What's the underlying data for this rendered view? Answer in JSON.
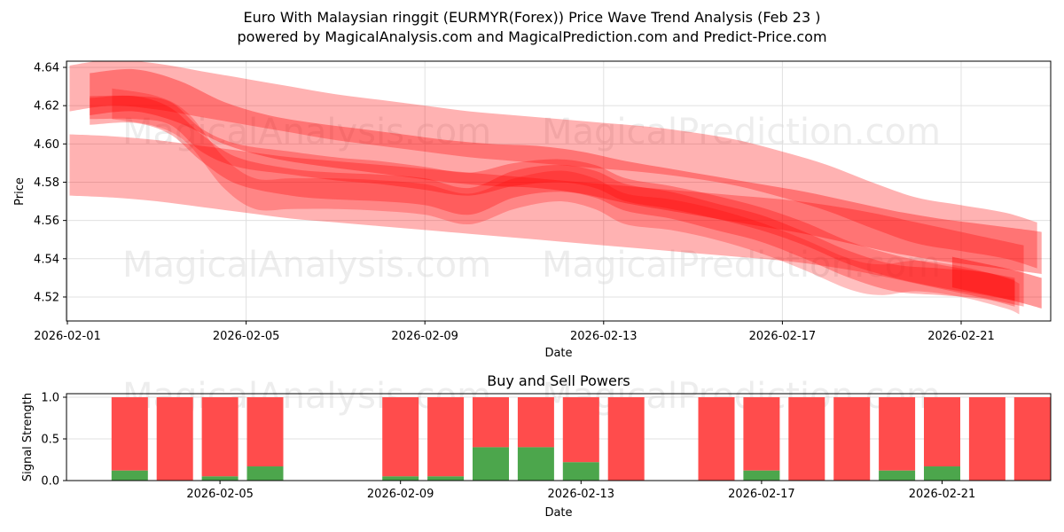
{
  "header": {
    "title_line1": "Euro With Malaysian ringgit (EURMYR(Forex)) Price Wave Trend Analysis (Feb 23 )",
    "title_line2": "powered by MagicalAnalysis.com and MagicalPrediction.com and Predict-Price.com"
  },
  "watermarks": [
    "MagicalAnalysis.com",
    "MagicalPrediction.com"
  ],
  "colors": {
    "wave": "#ff0000",
    "sell": "#ff4c4c",
    "buy": "#4ca64c",
    "grid": "#e0e0e0",
    "watermark": "#d8d8d8"
  },
  "chart_data": [
    {
      "type": "area",
      "title": "",
      "xlabel": "Date",
      "ylabel": "Price",
      "x_ticks": [
        "2026-02-01",
        "2026-02-05",
        "2026-02-09",
        "2026-02-13",
        "2026-02-17",
        "2026-02-21"
      ],
      "y_ticks": [
        "4.52",
        "4.54",
        "4.56",
        "4.58",
        "4.60",
        "4.62",
        "4.64"
      ],
      "xlim": [
        "2026-01-31.8",
        "2026-02-22.9"
      ],
      "ylim": [
        4.507,
        4.643
      ],
      "grid": true,
      "description": "Overlapping translucent red wave bands showing predicted price trend, declining from ~4.62 to ~4.53",
      "bands": [
        {
          "name": "upper-wide",
          "alpha": 0.3,
          "halfwidth": 0.012,
          "points": [
            [
              0.05,
              4.629
            ],
            [
              1,
              4.632
            ],
            [
              2,
              4.63
            ],
            [
              3,
              4.626
            ],
            [
              4,
              4.622
            ],
            [
              5,
              4.618
            ],
            [
              6,
              4.614
            ],
            [
              7,
              4.611
            ],
            [
              8,
              4.608
            ],
            [
              9,
              4.605
            ],
            [
              10,
              4.603
            ],
            [
              11,
              4.601
            ],
            [
              12,
              4.599
            ],
            [
              13,
              4.597
            ],
            [
              14,
              4.594
            ],
            [
              15,
              4.59
            ],
            [
              16,
              4.584
            ],
            [
              17,
              4.577
            ],
            [
              18,
              4.568
            ],
            [
              19,
              4.56
            ],
            [
              20,
              4.556
            ],
            [
              21,
              4.552
            ],
            [
              21.7,
              4.547
            ]
          ]
        },
        {
          "name": "lower-wide",
          "alpha": 0.3,
          "halfwidth": 0.016,
          "points": [
            [
              0.05,
              4.589
            ],
            [
              1,
              4.588
            ],
            [
              2,
              4.586
            ],
            [
              3,
              4.583
            ],
            [
              4,
              4.58
            ],
            [
              5,
              4.577
            ],
            [
              6,
              4.575
            ],
            [
              7,
              4.573
            ],
            [
              8,
              4.571
            ],
            [
              9,
              4.569
            ],
            [
              10,
              4.567
            ],
            [
              11,
              4.565
            ],
            [
              12,
              4.563
            ],
            [
              13,
              4.561
            ],
            [
              14,
              4.559
            ],
            [
              15,
              4.557
            ],
            [
              16,
              4.555
            ],
            [
              17,
              4.552
            ],
            [
              18,
              4.548
            ],
            [
              19,
              4.543
            ],
            [
              20,
              4.538
            ],
            [
              21,
              4.533
            ],
            [
              21.4,
              4.531
            ]
          ]
        },
        {
          "name": "main-upper",
          "alpha": 0.35,
          "halfwidth": 0.011,
          "points": [
            [
              0.5,
              4.626
            ],
            [
              1.5,
              4.628
            ],
            [
              2.5,
              4.622
            ],
            [
              3.5,
              4.611
            ],
            [
              4.5,
              4.604
            ],
            [
              5.5,
              4.6
            ],
            [
              6.5,
              4.597
            ],
            [
              7.5,
              4.594
            ],
            [
              8.5,
              4.591
            ],
            [
              9.5,
              4.589
            ],
            [
              10.5,
              4.588
            ],
            [
              11.5,
              4.585
            ],
            [
              12.5,
              4.58
            ],
            [
              13.5,
              4.576
            ],
            [
              14.5,
              4.572
            ],
            [
              15.5,
              4.568
            ],
            [
              16.5,
              4.564
            ],
            [
              17.5,
              4.559
            ],
            [
              18.5,
              4.554
            ],
            [
              19.5,
              4.55
            ],
            [
              20.5,
              4.547
            ],
            [
              21.5,
              4.544
            ],
            [
              21.8,
              4.543
            ]
          ]
        },
        {
          "name": "core-1",
          "alpha": 0.3,
          "halfwidth": 0.006,
          "points": [
            [
              0.5,
              4.619
            ],
            [
              1.5,
              4.619
            ],
            [
              2.3,
              4.616
            ],
            [
              3,
              4.602
            ],
            [
              3.8,
              4.594
            ],
            [
              5,
              4.59
            ],
            [
              6,
              4.587
            ],
            [
              7,
              4.585
            ],
            [
              8,
              4.582
            ],
            [
              9,
              4.579
            ],
            [
              10,
              4.584
            ],
            [
              11,
              4.586
            ],
            [
              11.8,
              4.583
            ],
            [
              12.5,
              4.576
            ],
            [
              13.5,
              4.572
            ],
            [
              14.5,
              4.567
            ],
            [
              15.5,
              4.561
            ],
            [
              16.5,
              4.553
            ],
            [
              17.5,
              4.543
            ],
            [
              18.5,
              4.536
            ],
            [
              19.5,
              4.531
            ],
            [
              20.5,
              4.527
            ],
            [
              21.2,
              4.524
            ]
          ]
        },
        {
          "name": "core-2",
          "alpha": 0.3,
          "halfwidth": 0.007,
          "points": [
            [
              0.5,
              4.617
            ],
            [
              1.5,
              4.618
            ],
            [
              2.3,
              4.612
            ],
            [
              3,
              4.598
            ],
            [
              3.8,
              4.586
            ],
            [
              5,
              4.58
            ],
            [
              6,
              4.578
            ],
            [
              7,
              4.577
            ],
            [
              8,
              4.575
            ],
            [
              9,
              4.57
            ],
            [
              10,
              4.579
            ],
            [
              11,
              4.582
            ],
            [
              11.8,
              4.579
            ],
            [
              12.5,
              4.572
            ],
            [
              13.5,
              4.568
            ],
            [
              14.5,
              4.562
            ],
            [
              15.5,
              4.556
            ],
            [
              16.5,
              4.547
            ],
            [
              17.5,
              4.537
            ],
            [
              18.5,
              4.53
            ],
            [
              19.5,
              4.528
            ],
            [
              20.5,
              4.526
            ],
            [
              21.2,
              4.522
            ]
          ]
        },
        {
          "name": "core-3",
          "alpha": 0.25,
          "halfwidth": 0.008,
          "points": [
            [
              1,
              4.621
            ],
            [
              2,
              4.617
            ],
            [
              2.7,
              4.608
            ],
            [
              3.5,
              4.585
            ],
            [
              4.2,
              4.574
            ],
            [
              5,
              4.574
            ],
            [
              6,
              4.574
            ],
            [
              7,
              4.573
            ],
            [
              8,
              4.571
            ],
            [
              9,
              4.566
            ],
            [
              10,
              4.574
            ],
            [
              11,
              4.578
            ],
            [
              11.8,
              4.574
            ],
            [
              12.5,
              4.566
            ],
            [
              13.5,
              4.563
            ],
            [
              14.5,
              4.558
            ],
            [
              15.5,
              4.551
            ],
            [
              16.5,
              4.542
            ],
            [
              17.5,
              4.532
            ],
            [
              18.2,
              4.529
            ],
            [
              19,
              4.531
            ],
            [
              20,
              4.528
            ],
            [
              21,
              4.522
            ],
            [
              21.3,
              4.519
            ]
          ]
        },
        {
          "name": "end-block",
          "alpha": 0.4,
          "halfwidth": 0.008,
          "points": [
            [
              19.8,
              4.533
            ],
            [
              20.4,
              4.53
            ],
            [
              21,
              4.527
            ],
            [
              21.5,
              4.524
            ],
            [
              21.8,
              4.522
            ]
          ]
        }
      ]
    },
    {
      "type": "bar",
      "title": "Buy and Sell Powers",
      "xlabel": "Date",
      "ylabel": "Signal Strength",
      "x_ticks": [
        "2026-02-05",
        "2026-02-09",
        "2026-02-13",
        "2026-02-17",
        "2026-02-21"
      ],
      "y_ticks": [
        "0.0",
        "0.5",
        "1.0"
      ],
      "ylim": [
        0,
        1.05
      ],
      "grid": true,
      "stacked": true,
      "categories": [
        "2026-02-03",
        "2026-02-04",
        "2026-02-05",
        "2026-02-06",
        "2026-02-09",
        "2026-02-10",
        "2026-02-11",
        "2026-02-12",
        "2026-02-13",
        "2026-02-14",
        "2026-02-16",
        "2026-02-17",
        "2026-02-18",
        "2026-02-19",
        "2026-02-20",
        "2026-02-21",
        "2026-02-22",
        "2026-02-23"
      ],
      "day_index": [
        2,
        3,
        4,
        5,
        8,
        9,
        10,
        11,
        12,
        13,
        15,
        16,
        17,
        18,
        19,
        20,
        21,
        22
      ],
      "series": [
        {
          "name": "Buy",
          "color": "#4ca64c",
          "values": [
            0.12,
            0.0,
            0.05,
            0.17,
            0.05,
            0.05,
            0.4,
            0.4,
            0.22,
            0.0,
            0.0,
            0.12,
            0.0,
            0.0,
            0.12,
            0.17,
            0.0,
            0.0
          ]
        },
        {
          "name": "Sell",
          "color": "#ff4c4c",
          "values": [
            0.88,
            1.0,
            0.95,
            0.83,
            0.95,
            0.95,
            0.6,
            0.6,
            0.78,
            1.0,
            1.0,
            0.88,
            1.0,
            1.0,
            0.88,
            0.83,
            1.0,
            1.0
          ]
        }
      ]
    }
  ]
}
